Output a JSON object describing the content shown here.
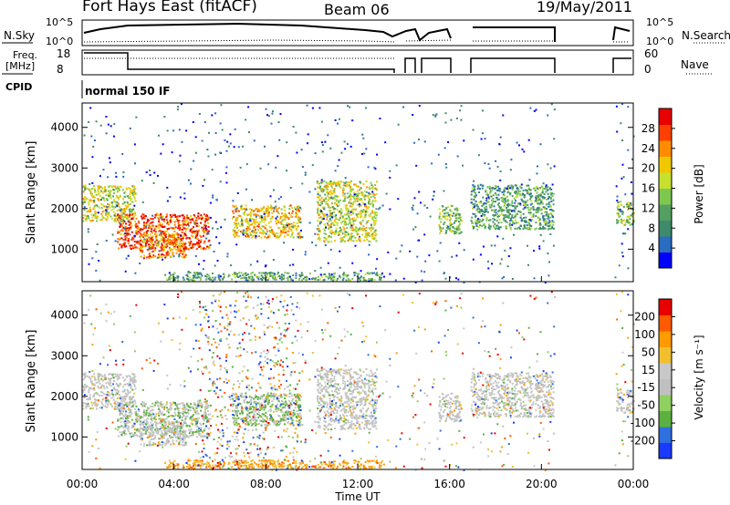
{
  "header": {
    "title": "Fort Hays East (fitACF)",
    "beam": "Beam 06",
    "date": "19/May/2011"
  },
  "summary": {
    "nsky_label": "N.Sky",
    "nsearch_label": "N.Search",
    "freq_label_line1": "Freq.",
    "freq_label_line2": "[MHz]",
    "nave_label": "Nave",
    "cpid_label": "CPID",
    "cpid_text": "normal 150 IF",
    "noise_ticks": [
      "10^5",
      "10^0"
    ],
    "freq_ticks": [
      "18",
      "8"
    ],
    "nave_ticks": [
      "60",
      "0"
    ]
  },
  "colors": {
    "power_scale": [
      "#0000ff",
      "#2a6cc0",
      "#3e8a6a",
      "#55a060",
      "#7ec850",
      "#c8e030",
      "#f0c800",
      "#ff8c00",
      "#ff4000",
      "#e80000"
    ],
    "velocity_scale": [
      "#1a3aff",
      "#2f6fe0",
      "#5cb040",
      "#8fd060",
      "#c0c0c0",
      "#c8c8c8",
      "#f0c030",
      "#ff9a00",
      "#ff5a00",
      "#e80000"
    ]
  },
  "chart_data": [
    {
      "type": "heatmap",
      "name": "power",
      "ylabel": "Slant Range [km]",
      "yticks": [
        "1000",
        "2000",
        "3000",
        "4000"
      ],
      "ylim": [
        200,
        4600
      ],
      "colorbar_label": "Power [dB]",
      "colorbar_ticks": [
        "4",
        "8",
        "12",
        "16",
        "20",
        "24",
        "28"
      ],
      "echo_regions": [
        {
          "t0": 0.0,
          "t1": 2.3,
          "r0": 1700,
          "r1": 2600,
          "level": 5
        },
        {
          "t0": 1.5,
          "t1": 5.5,
          "r0": 1000,
          "r1": 1900,
          "level": 8
        },
        {
          "t0": 2.5,
          "t1": 4.5,
          "r0": 800,
          "r1": 1400,
          "level": 7
        },
        {
          "t0": 6.5,
          "t1": 9.5,
          "r0": 1300,
          "r1": 2100,
          "level": 6
        },
        {
          "t0": 10.2,
          "t1": 12.8,
          "r0": 1200,
          "r1": 2700,
          "level": 5
        },
        {
          "t0": 15.5,
          "t1": 16.5,
          "r0": 1400,
          "r1": 2100,
          "level": 4
        },
        {
          "t0": 16.9,
          "t1": 20.5,
          "r0": 1500,
          "r1": 2600,
          "level": 3
        },
        {
          "t0": 3.5,
          "t1": 13.0,
          "r0": 250,
          "r1": 450,
          "level": 3
        },
        {
          "t0": 23.2,
          "t1": 24.0,
          "r0": 1600,
          "r1": 2200,
          "level": 4
        }
      ]
    },
    {
      "type": "heatmap",
      "name": "velocity",
      "ylabel": "Slant Range [km]",
      "yticks": [
        "1000",
        "2000",
        "3000",
        "4000"
      ],
      "ylim": [
        200,
        4600
      ],
      "colorbar_label": "Velocity [m s⁻¹]",
      "colorbar_ticks": [
        "200",
        "100",
        "50",
        "15",
        "-15",
        "-50",
        "-100",
        "-200"
      ],
      "xlabel": "Time UT",
      "xticks": [
        "00:00",
        "04:00",
        "08:00",
        "12:00",
        "16:00",
        "20:00",
        "00:00"
      ]
    }
  ],
  "gaps": [
    {
      "t0": 13.4,
      "t1": 13.6
    },
    {
      "t0": 14.0,
      "t1": 14.2
    },
    {
      "t0": 16.6,
      "t1": 16.9
    },
    {
      "t0": 20.6,
      "t1": 23.0
    }
  ]
}
